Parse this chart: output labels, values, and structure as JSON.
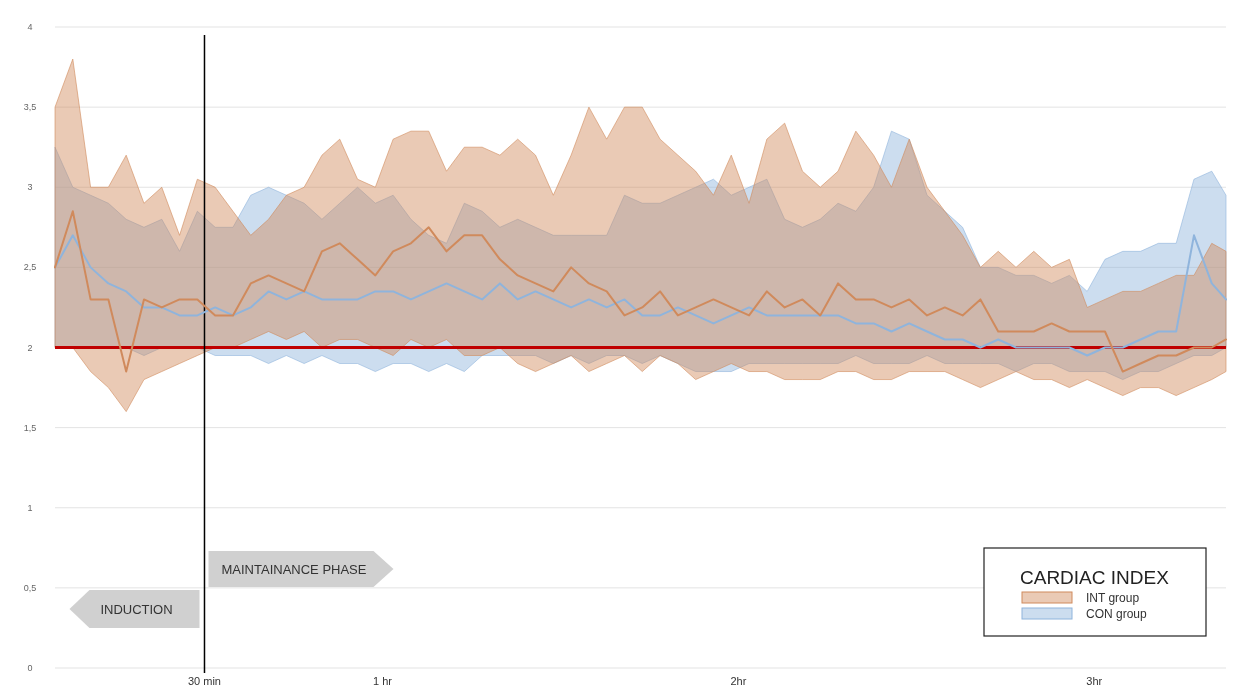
{
  "chart_data": {
    "type": "line",
    "legend_title": "CARDIAC INDEX",
    "legend": "bottom right",
    "grid": "y",
    "xlim": [
      0.08,
      3.37
    ],
    "xticks": [
      {
        "value": 1,
        "label": "1 hr"
      },
      {
        "value": 2,
        "label": "2hr"
      },
      {
        "value": 3,
        "label": "3hr"
      }
    ],
    "ylim": [
      0,
      4
    ],
    "yticks": [
      0,
      {
        "value": 0.5,
        "label": "0,5"
      },
      1,
      {
        "value": 1.5,
        "label": "1,5"
      },
      2,
      {
        "value": 2.5,
        "label": "2,5"
      },
      3,
      {
        "value": 3.5,
        "label": "3,5"
      },
      4
    ],
    "x": [
      0.08,
      0.13,
      0.18,
      0.23,
      0.28,
      0.33,
      0.38,
      0.43,
      0.48,
      0.53,
      0.58,
      0.63,
      0.68,
      0.73,
      0.78,
      0.83,
      0.88,
      0.93,
      0.98,
      1.03,
      1.08,
      1.13,
      1.18,
      1.23,
      1.28,
      1.33,
      1.38,
      1.43,
      1.48,
      1.53,
      1.58,
      1.63,
      1.68,
      1.73,
      1.78,
      1.83,
      1.88,
      1.93,
      1.98,
      2.03,
      2.08,
      2.13,
      2.18,
      2.23,
      2.28,
      2.33,
      2.38,
      2.43,
      2.48,
      2.53,
      2.58,
      2.63,
      2.68,
      2.73,
      2.78,
      2.83,
      2.88,
      2.93,
      2.98,
      3.03,
      3.08,
      3.13,
      3.18,
      3.23,
      3.28,
      3.33,
      3.37
    ],
    "series": [
      {
        "name": "CON group",
        "color": "#8fb4dc",
        "values": [
          2.5,
          2.7,
          2.5,
          2.4,
          2.35,
          2.25,
          2.25,
          2.2,
          2.2,
          2.25,
          2.2,
          2.25,
          2.35,
          2.3,
          2.35,
          2.3,
          2.3,
          2.3,
          2.35,
          2.35,
          2.3,
          2.35,
          2.4,
          2.35,
          2.3,
          2.4,
          2.3,
          2.35,
          2.3,
          2.25,
          2.3,
          2.25,
          2.3,
          2.2,
          2.2,
          2.25,
          2.2,
          2.15,
          2.2,
          2.25,
          2.2,
          2.2,
          2.2,
          2.2,
          2.2,
          2.15,
          2.15,
          2.1,
          2.15,
          2.1,
          2.05,
          2.05,
          2.0,
          2.05,
          2.0,
          2.0,
          2.0,
          2.0,
          1.95,
          2.0,
          2.0,
          2.05,
          2.1,
          2.1,
          2.7,
          2.4,
          2.3
        ],
        "upper": [
          3.25,
          3.0,
          2.95,
          2.9,
          2.8,
          2.75,
          2.8,
          2.6,
          2.85,
          2.75,
          2.75,
          2.95,
          3.0,
          2.95,
          2.9,
          2.8,
          2.9,
          3.0,
          2.9,
          2.95,
          2.8,
          2.7,
          2.65,
          2.9,
          2.85,
          2.75,
          2.8,
          2.75,
          2.7,
          2.7,
          2.7,
          2.7,
          2.95,
          2.9,
          2.9,
          2.95,
          3.0,
          3.05,
          2.95,
          3.0,
          3.05,
          2.8,
          2.75,
          2.8,
          2.9,
          2.85,
          3.0,
          3.35,
          3.3,
          2.95,
          2.85,
          2.75,
          2.5,
          2.5,
          2.45,
          2.45,
          2.4,
          2.45,
          2.35,
          2.55,
          2.6,
          2.6,
          2.65,
          2.65,
          3.05,
          3.1,
          2.95
        ],
        "lower": [
          2.0,
          2.0,
          2.0,
          2.0,
          2.0,
          1.95,
          2.0,
          2.0,
          2.0,
          1.95,
          1.95,
          1.95,
          1.9,
          1.95,
          1.9,
          1.95,
          1.9,
          1.9,
          1.85,
          1.9,
          1.9,
          1.85,
          1.9,
          1.85,
          1.95,
          1.95,
          1.95,
          1.95,
          1.9,
          1.95,
          1.9,
          1.95,
          1.95,
          1.9,
          1.95,
          1.9,
          1.85,
          1.85,
          1.85,
          1.9,
          1.9,
          1.9,
          1.9,
          1.9,
          1.9,
          1.95,
          1.9,
          1.9,
          1.9,
          1.95,
          1.9,
          1.9,
          1.9,
          1.9,
          1.85,
          1.9,
          1.9,
          1.85,
          1.85,
          1.85,
          1.8,
          1.85,
          1.85,
          1.9,
          1.95,
          1.95,
          2.0
        ]
      },
      {
        "name": "INT group",
        "color": "#d08a5c",
        "values": [
          2.5,
          2.85,
          2.3,
          2.3,
          1.85,
          2.3,
          2.25,
          2.3,
          2.3,
          2.2,
          2.2,
          2.4,
          2.45,
          2.4,
          2.35,
          2.6,
          2.65,
          2.55,
          2.45,
          2.6,
          2.65,
          2.75,
          2.6,
          2.7,
          2.7,
          2.55,
          2.45,
          2.4,
          2.35,
          2.5,
          2.4,
          2.35,
          2.2,
          2.25,
          2.35,
          2.2,
          2.25,
          2.3,
          2.25,
          2.2,
          2.35,
          2.25,
          2.3,
          2.2,
          2.4,
          2.3,
          2.3,
          2.25,
          2.3,
          2.2,
          2.25,
          2.2,
          2.3,
          2.1,
          2.1,
          2.1,
          2.15,
          2.1,
          2.1,
          2.1,
          1.85,
          1.9,
          1.95,
          1.95,
          2.0,
          2.0,
          2.05
        ],
        "upper": [
          3.5,
          3.8,
          3.0,
          3.0,
          3.2,
          2.9,
          3.0,
          2.7,
          3.05,
          3.0,
          2.85,
          2.7,
          2.8,
          2.95,
          3.0,
          3.2,
          3.3,
          3.05,
          3.0,
          3.3,
          3.35,
          3.35,
          3.1,
          3.25,
          3.25,
          3.2,
          3.3,
          3.2,
          2.95,
          3.2,
          3.5,
          3.3,
          3.5,
          3.5,
          3.3,
          3.2,
          3.1,
          2.95,
          3.2,
          2.9,
          3.3,
          3.4,
          3.1,
          3.0,
          3.1,
          3.35,
          3.2,
          3.0,
          3.3,
          3.0,
          2.85,
          2.7,
          2.5,
          2.6,
          2.5,
          2.6,
          2.5,
          2.55,
          2.25,
          2.3,
          2.35,
          2.35,
          2.4,
          2.45,
          2.45,
          2.65,
          2.6
        ],
        "lower": [
          2.0,
          2.0,
          1.85,
          1.75,
          1.6,
          1.8,
          1.85,
          1.9,
          1.95,
          2.0,
          2.0,
          2.05,
          2.1,
          2.05,
          2.1,
          2.0,
          2.05,
          2.05,
          2.0,
          1.95,
          2.05,
          2.0,
          2.05,
          1.95,
          1.95,
          2.0,
          1.9,
          1.85,
          1.9,
          1.95,
          1.85,
          1.9,
          1.95,
          1.85,
          1.95,
          1.9,
          1.8,
          1.85,
          1.9,
          1.85,
          1.85,
          1.8,
          1.8,
          1.8,
          1.85,
          1.85,
          1.8,
          1.8,
          1.85,
          1.85,
          1.85,
          1.8,
          1.75,
          1.8,
          1.85,
          1.8,
          1.8,
          1.75,
          1.8,
          1.75,
          1.7,
          1.75,
          1.75,
          1.7,
          1.75,
          1.8,
          1.85
        ]
      }
    ],
    "ref_lines": [
      {
        "axis": "y",
        "value": 2,
        "color": "#c00000"
      },
      {
        "axis": "x",
        "value": 0.5,
        "color": "#000000",
        "label": "30 min"
      }
    ],
    "annotations": [
      "MAINTAINANCE PHASE",
      "INDUCTION"
    ]
  }
}
